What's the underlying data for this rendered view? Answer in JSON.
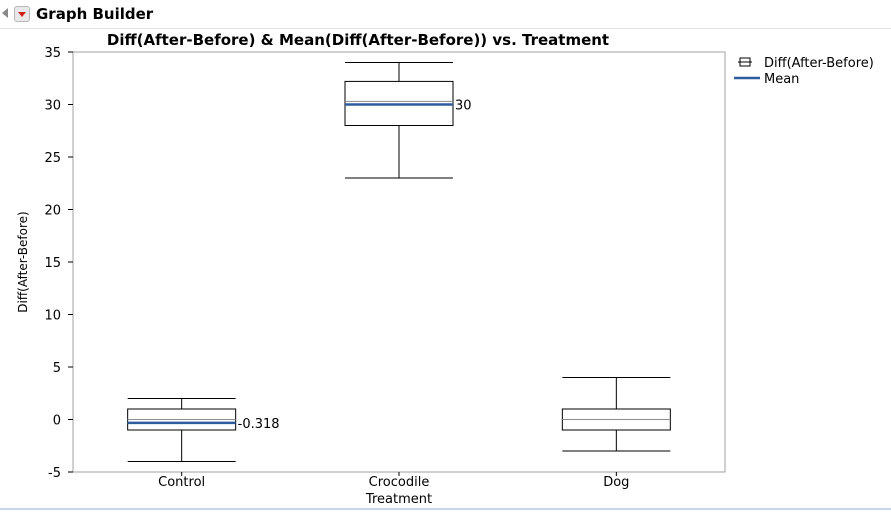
{
  "panel": {
    "title": "Graph Builder"
  },
  "chart_data": {
    "type": "box",
    "title": "Diff(After-Before) & Mean(Diff(After-Before)) vs. Treatment",
    "xlabel": "Treatment",
    "ylabel": "Diff(After-Before)",
    "ylim": [
      -5,
      35
    ],
    "yticks": [
      -5,
      0,
      5,
      10,
      15,
      20,
      25,
      30,
      35
    ],
    "categories": [
      "Control",
      "Crocodile",
      "Dog"
    ],
    "boxes": [
      {
        "category": "Control",
        "min": -4,
        "q1": -1,
        "median": 0,
        "q3": 1,
        "max": 2
      },
      {
        "category": "Crocodile",
        "min": 23,
        "q1": 28,
        "median": 30.3,
        "q3": 32.2,
        "max": 34
      },
      {
        "category": "Dog",
        "min": -3,
        "q1": -1,
        "median": 0,
        "q3": 1,
        "max": 4
      }
    ],
    "means": [
      {
        "category": "Control",
        "value": -0.318,
        "label": "-0.318"
      },
      {
        "category": "Crocodile",
        "value": 30,
        "label": "30"
      },
      {
        "category": "Dog",
        "value": null,
        "label": ""
      }
    ],
    "series": [
      {
        "name": "Diff(After-Before)",
        "kind": "box",
        "color": "#000000"
      },
      {
        "name": "Mean",
        "kind": "line",
        "color": "#2e5d9e"
      }
    ],
    "legend_position": "right",
    "grid": false
  }
}
